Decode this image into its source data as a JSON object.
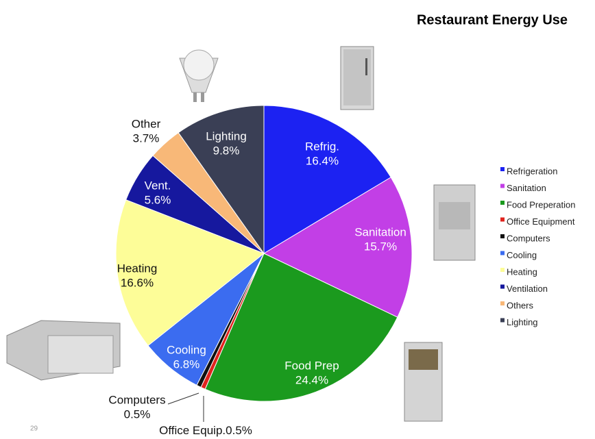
{
  "chart_data": {
    "type": "pie",
    "title": "Restaurant Energy Use",
    "page_number": "29",
    "categories": [
      "Refrigeration",
      "Sanitation",
      "Food Preperation",
      "Office Equipment",
      "Computers",
      "Cooling",
      "Heating",
      "Ventilation",
      "Others",
      "Lighting"
    ],
    "slice_labels": [
      "Refrig.",
      "Sanitation",
      "Food Prep",
      "Office Equip.",
      "Computers",
      "Cooling",
      "Heating",
      "Vent.",
      "Other",
      "Lighting"
    ],
    "values": [
      16.4,
      15.7,
      24.4,
      0.5,
      0.5,
      6.8,
      16.6,
      5.6,
      3.7,
      9.8
    ],
    "value_labels": [
      "16.4%",
      "15.7%",
      "24.4%",
      "0.5%",
      "0.5%",
      "6.8%",
      "16.6%",
      "5.6%",
      "3.7%",
      "9.8%"
    ],
    "colors": [
      "#1c22f2",
      "#c23fe6",
      "#1b9a1e",
      "#e0241e",
      "#111111",
      "#3b6cf0",
      "#fdfd98",
      "#16189e",
      "#f8b878",
      "#3a3f55"
    ],
    "legend": "right"
  }
}
